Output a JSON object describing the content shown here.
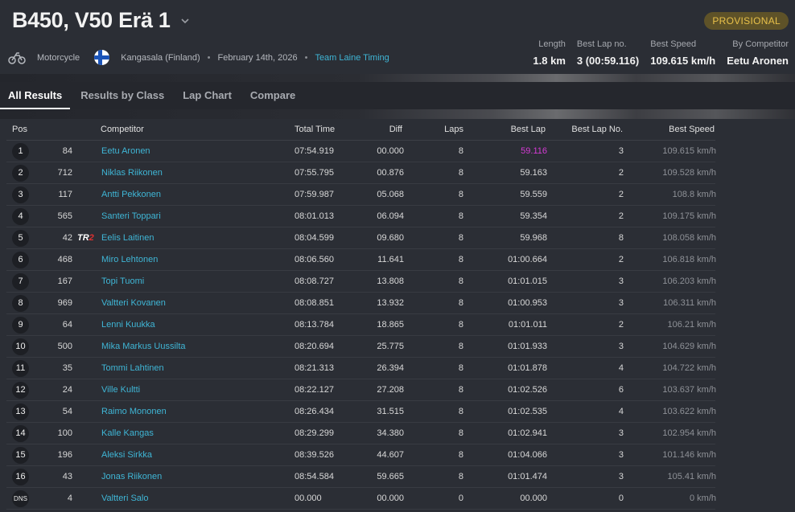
{
  "header": {
    "title": "B450, V50 Erä 1",
    "status_badge": "PROVISIONAL",
    "category": "Motorcycle",
    "location": "Kangasala (Finland)",
    "date": "February 14th, 2026",
    "organizer": "Team Laine Timing",
    "stats": [
      {
        "label": "Length",
        "value": "1.8 km"
      },
      {
        "label": "Best Lap no.",
        "value": "3 (00:59.116)"
      },
      {
        "label": "Best Speed",
        "value": "109.615 km/h"
      },
      {
        "label": "By Competitor",
        "value": "Eetu Aronen"
      }
    ],
    "dot": "•"
  },
  "tabs": [
    "All Results",
    "Results by Class",
    "Lap Chart",
    "Compare"
  ],
  "columns": {
    "pos": "Pos",
    "competitor": "Competitor",
    "total": "Total Time",
    "diff": "Diff",
    "laps": "Laps",
    "best": "Best Lap",
    "bestno": "Best Lap No.",
    "speed": "Best Speed"
  },
  "tag": {
    "t": "TR",
    "r": "2"
  },
  "rows": [
    {
      "pos": "1",
      "num": "84",
      "name": "Eetu Aronen",
      "total": "07:54.919",
      "diff": "00.000",
      "laps": "8",
      "best": "59.116",
      "bestno": "3",
      "speed": "109.615 km/h"
    },
    {
      "pos": "2",
      "num": "712",
      "name": "Niklas Riikonen",
      "total": "07:55.795",
      "diff": "00.876",
      "laps": "8",
      "best": "59.163",
      "bestno": "2",
      "speed": "109.528 km/h"
    },
    {
      "pos": "3",
      "num": "117",
      "name": "Antti Pekkonen",
      "total": "07:59.987",
      "diff": "05.068",
      "laps": "8",
      "best": "59.559",
      "bestno": "2",
      "speed": "108.8 km/h"
    },
    {
      "pos": "4",
      "num": "565",
      "name": "Santeri Toppari",
      "total": "08:01.013",
      "diff": "06.094",
      "laps": "8",
      "best": "59.354",
      "bestno": "2",
      "speed": "109.175 km/h"
    },
    {
      "pos": "5",
      "num": "42",
      "name": "Eelis Laitinen",
      "total": "08:04.599",
      "diff": "09.680",
      "laps": "8",
      "best": "59.968",
      "bestno": "8",
      "speed": "108.058 km/h"
    },
    {
      "pos": "6",
      "num": "468",
      "name": "Miro Lehtonen",
      "total": "08:06.560",
      "diff": "11.641",
      "laps": "8",
      "best": "01:00.664",
      "bestno": "2",
      "speed": "106.818 km/h"
    },
    {
      "pos": "7",
      "num": "167",
      "name": "Topi Tuomi",
      "total": "08:08.727",
      "diff": "13.808",
      "laps": "8",
      "best": "01:01.015",
      "bestno": "3",
      "speed": "106.203 km/h"
    },
    {
      "pos": "8",
      "num": "969",
      "name": "Valtteri Kovanen",
      "total": "08:08.851",
      "diff": "13.932",
      "laps": "8",
      "best": "01:00.953",
      "bestno": "3",
      "speed": "106.311 km/h"
    },
    {
      "pos": "9",
      "num": "64",
      "name": "Lenni Kuukka",
      "total": "08:13.784",
      "diff": "18.865",
      "laps": "8",
      "best": "01:01.011",
      "bestno": "2",
      "speed": "106.21 km/h"
    },
    {
      "pos": "10",
      "num": "500",
      "name": "Mika Markus Uussilta",
      "total": "08:20.694",
      "diff": "25.775",
      "laps": "8",
      "best": "01:01.933",
      "bestno": "3",
      "speed": "104.629 km/h"
    },
    {
      "pos": "11",
      "num": "35",
      "name": "Tommi Lahtinen",
      "total": "08:21.313",
      "diff": "26.394",
      "laps": "8",
      "best": "01:01.878",
      "bestno": "4",
      "speed": "104.722 km/h"
    },
    {
      "pos": "12",
      "num": "24",
      "name": "Ville Kultti",
      "total": "08:22.127",
      "diff": "27.208",
      "laps": "8",
      "best": "01:02.526",
      "bestno": "6",
      "speed": "103.637 km/h"
    },
    {
      "pos": "13",
      "num": "54",
      "name": "Raimo Mononen",
      "total": "08:26.434",
      "diff": "31.515",
      "laps": "8",
      "best": "01:02.535",
      "bestno": "4",
      "speed": "103.622 km/h"
    },
    {
      "pos": "14",
      "num": "100",
      "name": "Kalle Kangas",
      "total": "08:29.299",
      "diff": "34.380",
      "laps": "8",
      "best": "01:02.941",
      "bestno": "3",
      "speed": "102.954 km/h"
    },
    {
      "pos": "15",
      "num": "196",
      "name": "Aleksi Sirkka",
      "total": "08:39.526",
      "diff": "44.607",
      "laps": "8",
      "best": "01:04.066",
      "bestno": "3",
      "speed": "101.146 km/h"
    },
    {
      "pos": "16",
      "num": "43",
      "name": "Jonas Riikonen",
      "total": "08:54.584",
      "diff": "59.665",
      "laps": "8",
      "best": "01:01.474",
      "bestno": "3",
      "speed": "105.41 km/h"
    },
    {
      "pos": "DNS",
      "num": "4",
      "name": "Valtteri Salo",
      "total": "00.000",
      "diff": "00.000",
      "laps": "0",
      "best": "00.000",
      "bestno": "0",
      "speed": "0 km/h"
    }
  ],
  "colors": {
    "accent": "#3fb6d6",
    "best_lap": "#d53bd5",
    "badge": "#e8c04a"
  }
}
